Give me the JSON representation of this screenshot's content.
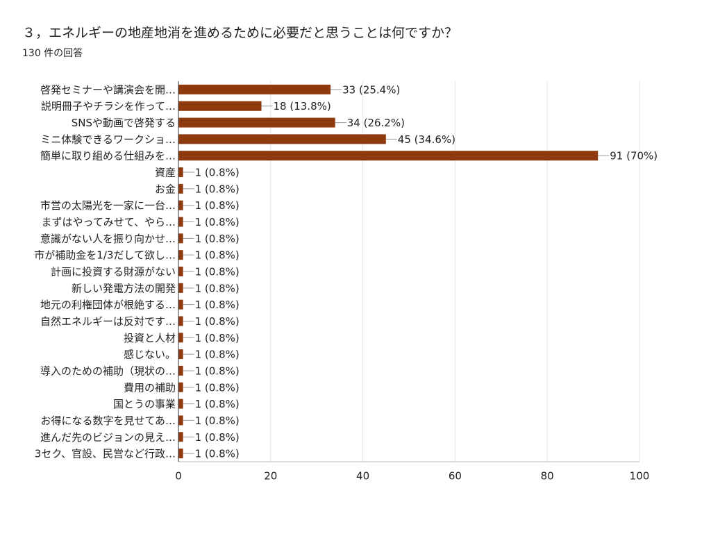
{
  "chart_data": {
    "type": "bar",
    "orientation": "horizontal",
    "title": "３，エネルギーの地産地消を進めるために必要だと思うことは何ですか？",
    "subtitle": "130 件の回答",
    "categories": [
      "啓発セミナーや講演会を開…",
      "説明冊子やチラシを作って…",
      "SNSや動画で啓発する",
      "ミニ体験できるワークショ…",
      "簡単に取り組める仕組みを…",
      "資産",
      "お金",
      "市営の太陽光を一家に一台…",
      "まずはやってみせて、やら…",
      "意識がない人を振り向かせ…",
      "市が補助金を1/3だして欲し…",
      "計画に投資する財源がない",
      "新しい発電方法の開発",
      "地元の利権団体が根絶する…",
      "自然エネルギーは反対です…",
      "投資と人材",
      "感じない。",
      "導入のための補助（現状の…",
      "費用の補助",
      "国とうの事業",
      "お得になる数字を見せてあ…",
      "進んだ先のビジョンの見え…",
      "3セク、官設、民営など行政…"
    ],
    "values": [
      33,
      18,
      34,
      45,
      91,
      1,
      1,
      1,
      1,
      1,
      1,
      1,
      1,
      1,
      1,
      1,
      1,
      1,
      1,
      1,
      1,
      1,
      1
    ],
    "value_labels": [
      "33 (25.4%)",
      "18 (13.8%)",
      "34 (26.2%)",
      "45 (34.6%)",
      "91 (70%)",
      "1 (0.8%)",
      "1 (0.8%)",
      "1 (0.8%)",
      "1 (0.8%)",
      "1 (0.8%)",
      "1 (0.8%)",
      "1 (0.8%)",
      "1 (0.8%)",
      "1 (0.8%)",
      "1 (0.8%)",
      "1 (0.8%)",
      "1 (0.8%)",
      "1 (0.8%)",
      "1 (0.8%)",
      "1 (0.8%)",
      "1 (0.8%)",
      "1 (0.8%)",
      "1 (0.8%)"
    ],
    "color": "#8f3a0e",
    "xlim": [
      0,
      100
    ],
    "xticks": [
      0,
      20,
      40,
      60,
      80,
      100
    ],
    "grid": true
  }
}
